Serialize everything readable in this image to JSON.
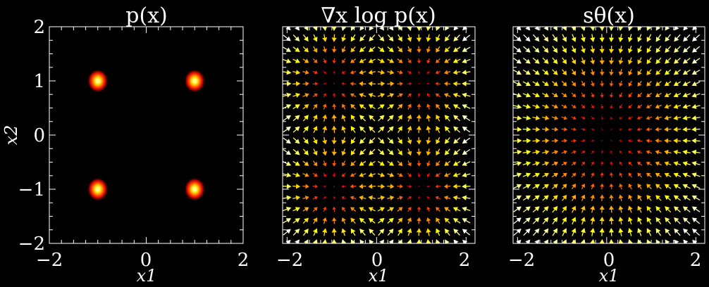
{
  "theme": {
    "background": "#000000",
    "axis_color": "#ffffff",
    "colormap": "hot"
  },
  "chart_data": [
    {
      "type": "heatmap",
      "title": "p(x)",
      "xlabel": "x1",
      "ylabel": "x2",
      "xlim": [
        -2,
        2
      ],
      "ylim": [
        -2,
        2
      ],
      "xticks": [
        "−2",
        "0",
        "2"
      ],
      "yticks": [
        "2",
        "1",
        "0",
        "−1",
        "−2"
      ],
      "grid": false,
      "density": {
        "kind": "gaussian_mixture",
        "means": [
          [
            -1,
            1
          ],
          [
            1,
            1
          ],
          [
            -1,
            -1
          ],
          [
            1,
            -1
          ]
        ],
        "std": 0.1
      }
    },
    {
      "type": "quiver",
      "title": "∇x log p(x)",
      "xlabel": "x1",
      "ylabel": "",
      "xlim": [
        -2.1,
        2.2
      ],
      "ylim": [
        -2,
        2
      ],
      "xticks": [
        "−2",
        "0",
        "2"
      ],
      "grid": false,
      "field": {
        "kind": "mixture_score",
        "means": [
          [
            -1,
            1
          ],
          [
            1,
            1
          ],
          [
            -1,
            -1
          ],
          [
            1,
            -1
          ]
        ],
        "grid_n": 20,
        "grid_range": [
          -2,
          2
        ]
      }
    },
    {
      "type": "quiver",
      "title": "sθ(x)",
      "xlabel": "x1",
      "ylabel": "",
      "xlim": [
        -2.1,
        2.2
      ],
      "ylim": [
        -2,
        2
      ],
      "xticks": [
        "−2",
        "0",
        "2"
      ],
      "grid": false,
      "field": {
        "kind": "learned_score",
        "center": [
          0,
          0
        ],
        "grid_n": 20,
        "grid_range": [
          -2,
          2
        ]
      }
    }
  ]
}
